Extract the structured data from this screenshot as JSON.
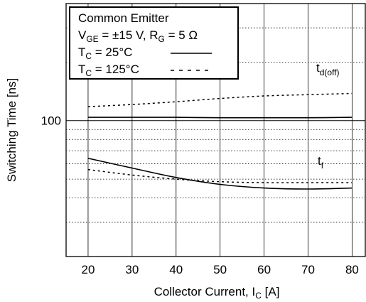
{
  "chart_data": {
    "type": "line",
    "xlabel": {
      "main": "Collector Current, I",
      "sub": "C",
      "unit": " [A]"
    },
    "ylabel": "Switching Time [ns]",
    "x_ticks": [
      "20",
      "30",
      "40",
      "50",
      "60",
      "70",
      "80"
    ],
    "y_ticks": [
      "100"
    ],
    "xlim": [
      15,
      83
    ],
    "ylim": [
      20,
      400
    ],
    "yscale": "log",
    "grid": true,
    "legend_placement": "top-left",
    "legend": {
      "line1": "Common Emitter",
      "line2": {
        "v": "V",
        "vsub": "GE",
        "veq": " = ±15 V, R",
        "rsub": "G",
        "req": " = 5 Ω"
      },
      "entries": [
        {
          "label": "T",
          "sub": "C",
          "rest": " = 25°C",
          "style": "solid"
        },
        {
          "label": "T",
          "sub": "C",
          "rest": " = 125°C",
          "style": "dashed"
        }
      ]
    },
    "annotations": [
      {
        "main": "t",
        "sub": "d(off)"
      },
      {
        "main": "t",
        "sub": "f"
      }
    ],
    "series": [
      {
        "group": "d(off)",
        "style": "solid",
        "x": [
          20,
          30,
          40,
          50,
          60,
          70,
          80
        ],
        "values": [
          104,
          104,
          104,
          103.5,
          103.5,
          103.5,
          104
        ]
      },
      {
        "group": "d(off)",
        "style": "dashed",
        "x": [
          20,
          30,
          40,
          50,
          60,
          70,
          80
        ],
        "values": [
          118,
          121,
          125,
          130,
          134,
          136,
          138
        ]
      },
      {
        "group": "f",
        "style": "solid",
        "x": [
          20,
          30,
          40,
          50,
          60,
          70,
          80
        ],
        "values": [
          64,
          57,
          51,
          47,
          45,
          44.5,
          45
        ]
      },
      {
        "group": "f",
        "style": "dashed",
        "x": [
          20,
          30,
          40,
          50,
          60,
          70,
          80
        ],
        "values": [
          56,
          52.5,
          50,
          48.5,
          48,
          48,
          48
        ]
      }
    ]
  }
}
